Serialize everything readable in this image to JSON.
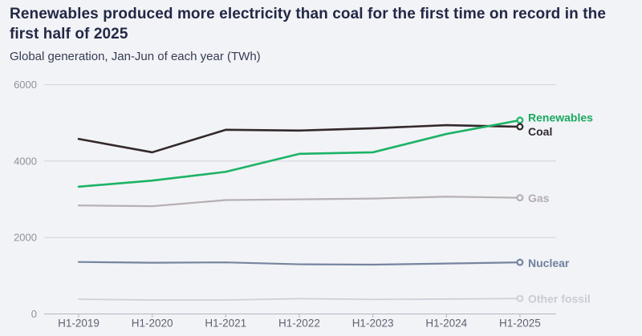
{
  "colors": {
    "background": "#f2f3f6",
    "title_text": "#222845",
    "subtitle_text": "#363c55",
    "gridline": "#d3d3db",
    "axis_line": "#b4b5c0",
    "y_tick_label": "#8f919e",
    "x_tick_label": "#5f6274"
  },
  "chart_data": {
    "type": "line",
    "title": "Renewables produced more electricity than coal for the first time on record in the first half of 2025",
    "subtitle": "Global generation, Jan-Jun of each year (TWh)",
    "unit": "TWh",
    "xlabel": "",
    "ylabel": "",
    "ylim": [
      0,
      6000
    ],
    "yticks": [
      0,
      2000,
      4000,
      6000
    ],
    "grid": "horizontal",
    "legend_position": "end-of-line-right",
    "categories": [
      "H1-2019",
      "H1-2020",
      "H1-2021",
      "H1-2022",
      "H1-2023",
      "H1-2024",
      "H1-2025"
    ],
    "series": [
      {
        "name": "Renewables",
        "color": "#1db366",
        "label_color": "#1aa95f",
        "values": [
          3330,
          3490,
          3720,
          4190,
          4230,
          4710,
          5070
        ]
      },
      {
        "name": "Coal",
        "color": "#33282a",
        "label_color": "#2f2a33",
        "values": [
          4580,
          4230,
          4820,
          4800,
          4860,
          4940,
          4900
        ]
      },
      {
        "name": "Gas",
        "color": "#b6b0b4",
        "label_color": "#b3adb1",
        "values": [
          2840,
          2820,
          2980,
          3000,
          3020,
          3070,
          3040
        ]
      },
      {
        "name": "Nuclear",
        "color": "#75849f",
        "label_color": "#6f7f9d",
        "values": [
          1360,
          1340,
          1350,
          1300,
          1290,
          1320,
          1350
        ]
      },
      {
        "name": "Other fossil",
        "color": "#ced1d9",
        "label_color": "#c9ccd6",
        "values": [
          385,
          365,
          365,
          400,
          380,
          390,
          405
        ]
      }
    ]
  }
}
